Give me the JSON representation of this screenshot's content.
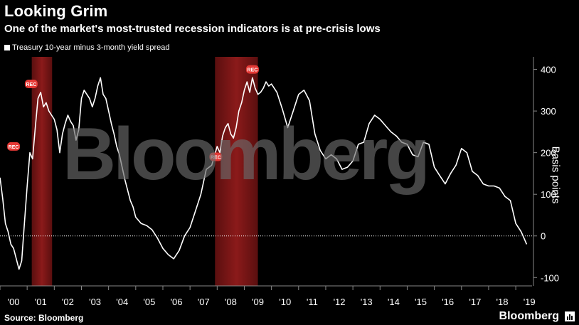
{
  "title": "Looking Grim",
  "subtitle": "One of the market's most-trusted recession indicators is at pre-crisis lows",
  "legend_label": "Treasury 10-year minus 3-month yield spread",
  "y_axis_label": "Basis points",
  "source": "Source: Bloomberg",
  "brand": "Bloomberg",
  "watermark": "Bloomberg",
  "colors": {
    "background": "#000000",
    "line": "#ffffff",
    "recession": "#8b1a1a",
    "rec_marker": "#e53935"
  },
  "chart_data": {
    "type": "line",
    "title": "Looking Grim",
    "ylabel": "Basis points",
    "xlabel": "",
    "ylim": [
      -120,
      430
    ],
    "yticks": [
      400,
      300,
      200,
      100,
      0,
      -100
    ],
    "x_tick_labels": [
      "'00",
      "'01",
      "'02",
      "'03",
      "'04",
      "'05",
      "'06",
      "'07",
      "'08",
      "'09",
      "'10",
      "'11",
      "'12",
      "'13",
      "'14",
      "'15",
      "'16",
      "'17",
      "'18",
      "'19"
    ],
    "xlim": [
      2000.0,
      2019.6
    ],
    "recessions": [
      [
        2001.17,
        2001.92
      ],
      [
        2007.92,
        2009.5
      ]
    ],
    "rec_markers": [
      {
        "label": "REC",
        "x": 2001.15,
        "y": 365
      },
      {
        "label": "REC",
        "x": 2000.5,
        "y": 215
      },
      {
        "label": "REC",
        "x": 2007.95,
        "y": 190
      },
      {
        "label": "REC",
        "x": 2009.3,
        "y": 400
      }
    ],
    "series": [
      {
        "name": "Treasury 10-year minus 3-month yield spread",
        "x": [
          2000.0,
          2000.1,
          2000.2,
          2000.3,
          2000.4,
          2000.5,
          2000.6,
          2000.7,
          2000.8,
          2000.9,
          2001.0,
          2001.1,
          2001.2,
          2001.3,
          2001.4,
          2001.5,
          2001.6,
          2001.7,
          2001.8,
          2001.9,
          2002.0,
          2002.1,
          2002.2,
          2002.3,
          2002.4,
          2002.5,
          2002.6,
          2002.7,
          2002.8,
          2002.9,
          2003.0,
          2003.1,
          2003.2,
          2003.3,
          2003.4,
          2003.5,
          2003.6,
          2003.7,
          2003.8,
          2003.9,
          2004.0,
          2004.1,
          2004.2,
          2004.3,
          2004.4,
          2004.5,
          2004.6,
          2004.7,
          2004.8,
          2004.9,
          2005.0,
          2005.2,
          2005.4,
          2005.6,
          2005.8,
          2006.0,
          2006.2,
          2006.4,
          2006.6,
          2006.8,
          2007.0,
          2007.2,
          2007.4,
          2007.6,
          2007.8,
          2008.0,
          2008.1,
          2008.2,
          2008.3,
          2008.4,
          2008.5,
          2008.6,
          2008.7,
          2008.8,
          2008.9,
          2009.0,
          2009.1,
          2009.2,
          2009.3,
          2009.4,
          2009.5,
          2009.6,
          2009.7,
          2009.8,
          2009.9,
          2010.0,
          2010.2,
          2010.4,
          2010.6,
          2010.8,
          2011.0,
          2011.2,
          2011.4,
          2011.6,
          2011.8,
          2012.0,
          2012.2,
          2012.4,
          2012.6,
          2012.8,
          2013.0,
          2013.2,
          2013.4,
          2013.6,
          2013.8,
          2014.0,
          2014.2,
          2014.4,
          2014.6,
          2014.8,
          2015.0,
          2015.2,
          2015.4,
          2015.6,
          2015.8,
          2016.0,
          2016.2,
          2016.4,
          2016.6,
          2016.8,
          2017.0,
          2017.2,
          2017.4,
          2017.6,
          2017.8,
          2018.0,
          2018.2,
          2018.4,
          2018.6,
          2018.8,
          2019.0,
          2019.1,
          2019.2,
          2019.3,
          2019.4
        ],
        "values": [
          140,
          90,
          30,
          10,
          -20,
          -30,
          -55,
          -80,
          -60,
          30,
          120,
          200,
          185,
          260,
          330,
          345,
          310,
          320,
          300,
          290,
          280,
          255,
          200,
          245,
          270,
          290,
          275,
          265,
          230,
          255,
          330,
          350,
          340,
          330,
          310,
          330,
          360,
          380,
          340,
          330,
          300,
          270,
          245,
          215,
          195,
          165,
          135,
          110,
          85,
          70,
          45,
          30,
          25,
          15,
          -5,
          -30,
          -45,
          -55,
          -35,
          0,
          20,
          60,
          100,
          160,
          170,
          215,
          200,
          240,
          260,
          270,
          245,
          235,
          260,
          300,
          320,
          350,
          370,
          345,
          380,
          355,
          340,
          345,
          355,
          370,
          360,
          365,
          345,
          305,
          260,
          300,
          340,
          350,
          325,
          245,
          205,
          185,
          195,
          185,
          160,
          165,
          180,
          220,
          225,
          270,
          290,
          280,
          265,
          250,
          240,
          225,
          220,
          195,
          190,
          225,
          220,
          165,
          145,
          125,
          150,
          170,
          210,
          200,
          155,
          145,
          125,
          120,
          120,
          115,
          95,
          85,
          30,
          20,
          10,
          -5,
          -20
        ]
      }
    ]
  }
}
